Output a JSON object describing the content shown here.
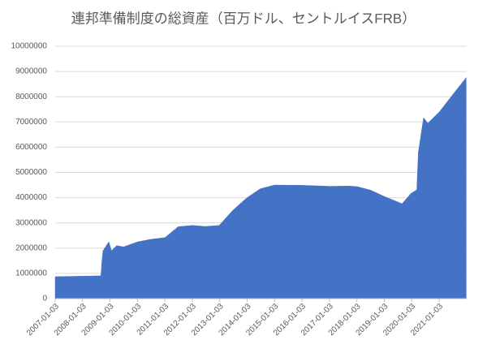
{
  "chart_data": {
    "type": "area",
    "title": "連邦準備制度の総資産（百万ドル、セントルイスFRB）",
    "color": "#4472c4",
    "grid": true,
    "x": [
      "2007-01-03",
      "2008-01-02",
      "2008-09-03",
      "2008-09-17",
      "2008-10-01",
      "2008-12-17",
      "2009-01-21",
      "2009-04-01",
      "2009-07-01",
      "2010-01-06",
      "2010-06-30",
      "2011-01-05",
      "2011-06-29",
      "2012-01-04",
      "2012-06-27",
      "2012-12-26",
      "2013-06-26",
      "2014-01-01",
      "2014-06-25",
      "2014-12-31",
      "2016-01-06",
      "2017-01-04",
      "2017-09-27",
      "2018-01-03",
      "2018-07-04",
      "2019-01-02",
      "2019-08-28",
      "2019-12-25",
      "2020-03-11",
      "2020-04-01",
      "2020-06-10",
      "2020-08-05",
      "2021-01-06",
      "2021-06-30",
      "2021-12-29"
    ],
    "values": [
      870000,
      890000,
      905000,
      1500000,
      1900000,
      2250000,
      1900000,
      2100000,
      2050000,
      2250000,
      2350000,
      2420000,
      2850000,
      2900000,
      2860000,
      2900000,
      3500000,
      4000000,
      4350000,
      4500000,
      4490000,
      4450000,
      4460000,
      4440000,
      4300000,
      4050000,
      3760000,
      4170000,
      4310000,
      5800000,
      7170000,
      6950000,
      7400000,
      8070000,
      8760000
    ],
    "xlim": [
      "2007-01-03",
      "2022-01-05"
    ],
    "xticks": [
      "2007-01-03",
      "2008-01-03",
      "2009-01-03",
      "2010-01-03",
      "2011-01-03",
      "2012-01-03",
      "2013-01-03",
      "2014-01-03",
      "2015-01-03",
      "2016-01-03",
      "2017-01-03",
      "2018-01-03",
      "2019-01-03",
      "2020-01-03",
      "2021-01-03"
    ],
    "ylim": [
      0,
      10000000
    ],
    "yticks": [
      0,
      1000000,
      2000000,
      3000000,
      4000000,
      5000000,
      6000000,
      7000000,
      8000000,
      9000000,
      10000000
    ]
  }
}
